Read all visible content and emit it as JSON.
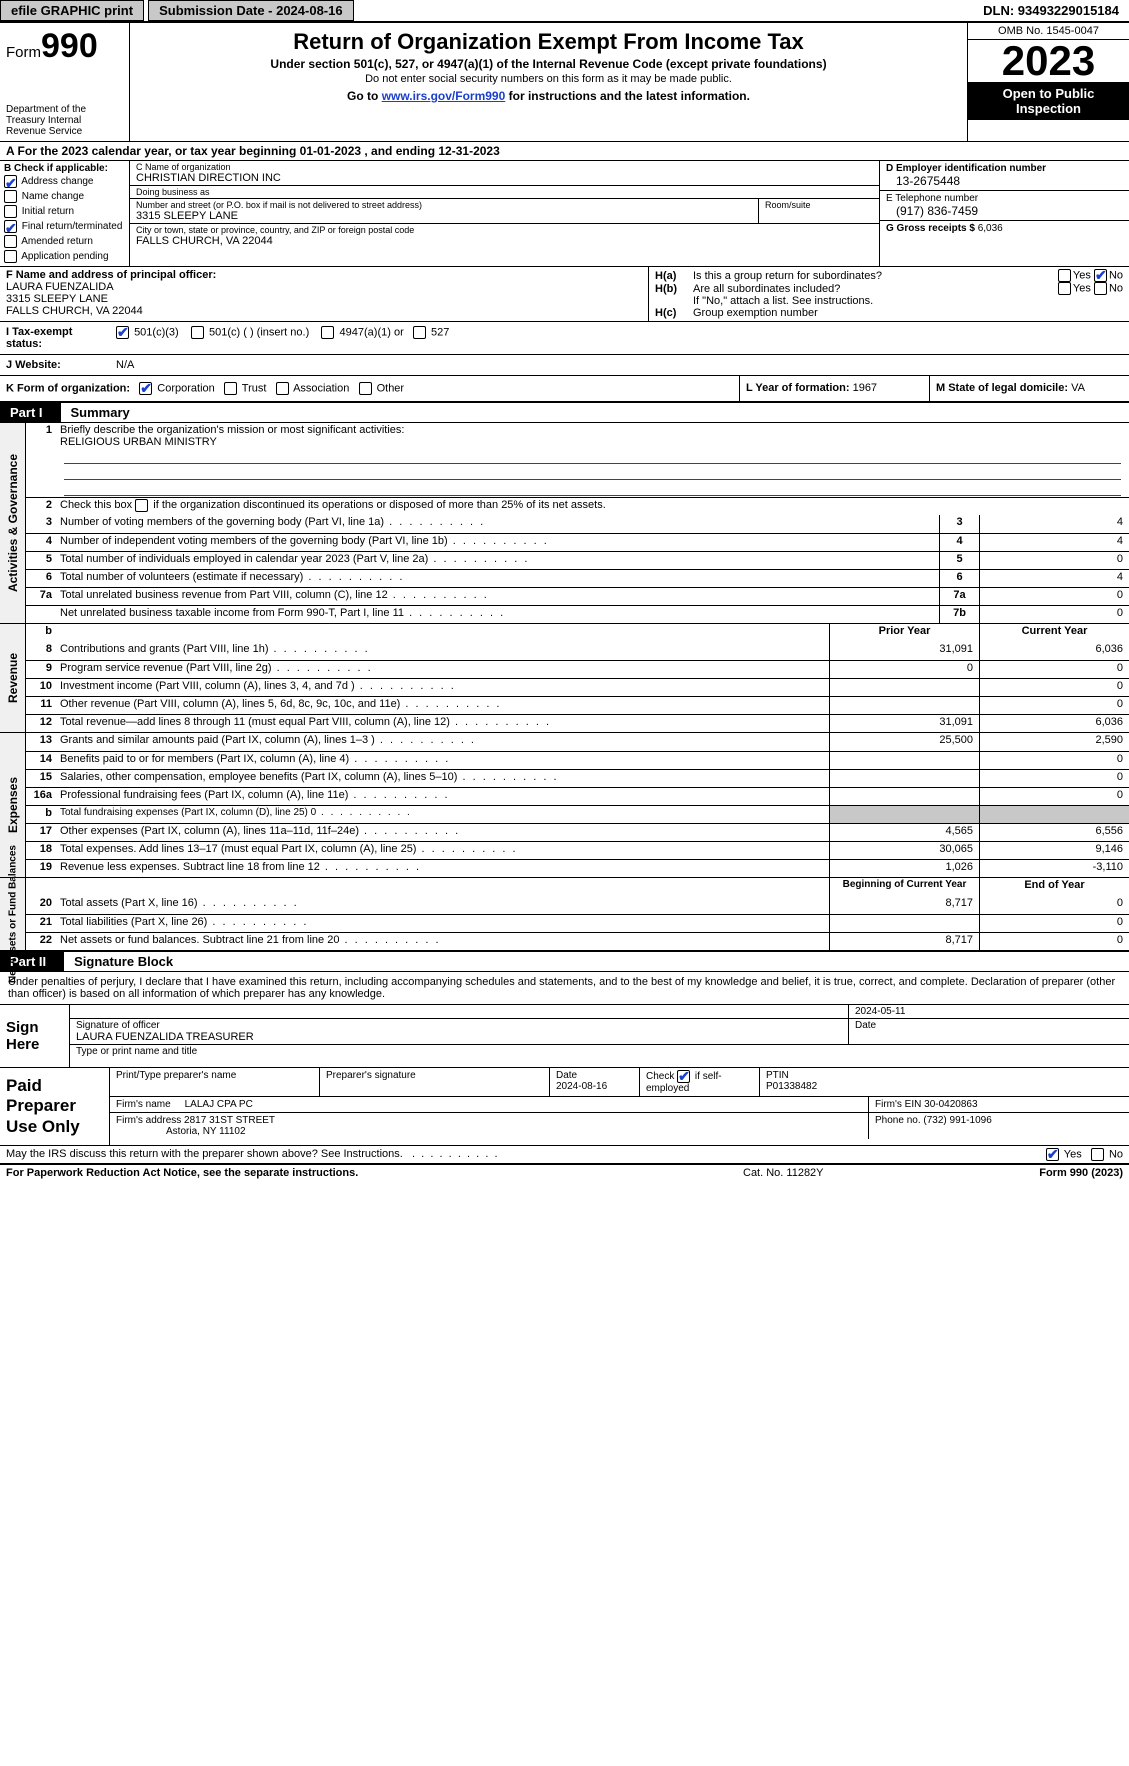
{
  "topbar": {
    "efile": "efile GRAPHIC print",
    "submission": "Submission Date - 2024-08-16",
    "dln": "DLN: 93493229015184"
  },
  "header": {
    "form_word": "Form",
    "form_num": "990",
    "dept": "Department of the Treasury Internal Revenue Service",
    "title": "Return of Organization Exempt From Income Tax",
    "sub1": "Under section 501(c), 527, or 4947(a)(1) of the Internal Revenue Code (except private foundations)",
    "sub2": "Do not enter social security numbers on this form as it may be made public.",
    "sub3_a": "Go to ",
    "sub3_link": "www.irs.gov/Form990",
    "sub3_b": " for instructions and the latest information.",
    "omb": "OMB No. 1545-0047",
    "year": "2023",
    "inspect": "Open to Public Inspection"
  },
  "line_a": "A For the 2023 calendar year, or tax year beginning 01-01-2023    , and ending 12-31-2023",
  "col_b": {
    "hdr": "B Check if applicable:",
    "opts": [
      "Address change",
      "Name change",
      "Initial return",
      "Final return/terminated",
      "Amended return",
      "Application pending"
    ],
    "checked": [
      true,
      false,
      false,
      true,
      false,
      false
    ]
  },
  "col_c": {
    "name_lbl": "C Name of organization",
    "name": "CHRISTIAN DIRECTION INC",
    "dba_lbl": "Doing business as",
    "dba": "",
    "street_lbl": "Number and street (or P.O. box if mail is not delivered to street address)",
    "street": "3315 SLEEPY LANE",
    "room_lbl": "Room/suite",
    "city_lbl": "City or town, state or province, country, and ZIP or foreign postal code",
    "city": "FALLS CHURCH, VA   22044"
  },
  "col_deg": {
    "d_lbl": "D Employer identification number",
    "d_val": "13-2675448",
    "e_lbl": "E Telephone number",
    "e_val": "(917) 836-7459",
    "g_lbl": "G Gross receipts $",
    "g_val": "6,036"
  },
  "row_f": {
    "lbl": "F  Name and address of principal officer:",
    "name": "LAURA FUENZALIDA",
    "addr1": "3315 SLEEPY LANE",
    "addr2": "FALLS CHURCH, VA  22044",
    "ha_lbl": "H(a)",
    "ha_txt": "Is this a group return for subordinates?",
    "hb_lbl": "H(b)",
    "hb_txt": "Are all subordinates included?",
    "hb_note": "If \"No,\" attach a list. See instructions.",
    "hc_lbl": "H(c)",
    "hc_txt": "Group exemption number",
    "yes": "Yes",
    "no": "No"
  },
  "row_i": {
    "lbl": "I  Tax-exempt status:",
    "o1": "501(c)(3)",
    "o2": "501(c) (  ) (insert no.)",
    "o3": "4947(a)(1) or",
    "o4": "527"
  },
  "row_j": {
    "lbl": "J  Website:",
    "val": "N/A"
  },
  "row_k": {
    "lbl": "K Form of organization:",
    "o1": "Corporation",
    "o2": "Trust",
    "o3": "Association",
    "o4": "Other",
    "l_lbl": "L Year of formation:",
    "l_val": "1967",
    "m_lbl": "M State of legal domicile:",
    "m_val": "VA"
  },
  "parts": {
    "p1_tag": "Part I",
    "p1_ttl": "Summary",
    "p2_tag": "Part II",
    "p2_ttl": "Signature Block"
  },
  "gov": {
    "vlabel": "Activities & Governance",
    "l1": "Briefly describe the organization's mission or most significant activities:",
    "l1_val": "RELIGIOUS URBAN MINISTRY",
    "l2": "Check this box        if the organization discontinued its operations or disposed of more than 25% of its net assets.",
    "rows": [
      {
        "n": "3",
        "d": "Number of voting members of the governing body (Part VI, line 1a)",
        "b": "3",
        "v": "4"
      },
      {
        "n": "4",
        "d": "Number of independent voting members of the governing body (Part VI, line 1b)",
        "b": "4",
        "v": "4"
      },
      {
        "n": "5",
        "d": "Total number of individuals employed in calendar year 2023 (Part V, line 2a)",
        "b": "5",
        "v": "0"
      },
      {
        "n": "6",
        "d": "Total number of volunteers (estimate if necessary)",
        "b": "6",
        "v": "4"
      },
      {
        "n": "7a",
        "d": "Total unrelated business revenue from Part VIII, column (C), line 12",
        "b": "7a",
        "v": "0"
      },
      {
        "n": "",
        "d": "Net unrelated business taxable income from Form 990-T, Part I, line 11",
        "b": "7b",
        "v": "0"
      }
    ]
  },
  "rev": {
    "vlabel": "Revenue",
    "hdr_b": "b",
    "hdr_py": "Prior Year",
    "hdr_cy": "Current Year",
    "rows": [
      {
        "n": "8",
        "d": "Contributions and grants (Part VIII, line 1h)",
        "py": "31,091",
        "cy": "6,036"
      },
      {
        "n": "9",
        "d": "Program service revenue (Part VIII, line 2g)",
        "py": "0",
        "cy": "0"
      },
      {
        "n": "10",
        "d": "Investment income (Part VIII, column (A), lines 3, 4, and 7d )",
        "py": "",
        "cy": "0"
      },
      {
        "n": "11",
        "d": "Other revenue (Part VIII, column (A), lines 5, 6d, 8c, 9c, 10c, and 11e)",
        "py": "",
        "cy": "0"
      },
      {
        "n": "12",
        "d": "Total revenue—add lines 8 through 11 (must equal Part VIII, column (A), line 12)",
        "py": "31,091",
        "cy": "6,036"
      }
    ]
  },
  "exp": {
    "vlabel": "Expenses",
    "rows": [
      {
        "n": "13",
        "d": "Grants and similar amounts paid (Part IX, column (A), lines 1–3 )",
        "py": "25,500",
        "cy": "2,590"
      },
      {
        "n": "14",
        "d": "Benefits paid to or for members (Part IX, column (A), line 4)",
        "py": "",
        "cy": "0"
      },
      {
        "n": "15",
        "d": "Salaries, other compensation, employee benefits (Part IX, column (A), lines 5–10)",
        "py": "",
        "cy": "0"
      },
      {
        "n": "16a",
        "d": "Professional fundraising fees (Part IX, column (A), line 11e)",
        "py": "",
        "cy": "0"
      },
      {
        "n": "b",
        "d": "Total fundraising expenses (Part IX, column (D), line 25) 0",
        "py": "__SHADE__",
        "cy": "__SHADE__",
        "small": true
      },
      {
        "n": "17",
        "d": "Other expenses (Part IX, column (A), lines 11a–11d, 11f–24e)",
        "py": "4,565",
        "cy": "6,556"
      },
      {
        "n": "18",
        "d": "Total expenses. Add lines 13–17 (must equal Part IX, column (A), line 25)",
        "py": "30,065",
        "cy": "9,146"
      },
      {
        "n": "19",
        "d": "Revenue less expenses. Subtract line 18 from line 12",
        "py": "1,026",
        "cy": "-3,110"
      }
    ]
  },
  "net": {
    "vlabel": "Net Assets or Fund Balances",
    "hdr_py": "Beginning of Current Year",
    "hdr_cy": "End of Year",
    "rows": [
      {
        "n": "20",
        "d": "Total assets (Part X, line 16)",
        "py": "8,717",
        "cy": "0"
      },
      {
        "n": "21",
        "d": "Total liabilities (Part X, line 26)",
        "py": "",
        "cy": "0"
      },
      {
        "n": "22",
        "d": "Net assets or fund balances. Subtract line 21 from line 20",
        "py": "8,717",
        "cy": "0"
      }
    ]
  },
  "sig_text": "Under penalties of perjury, I declare that I have examined this return, including accompanying schedules and statements, and to the best of my knowledge and belief, it is true, correct, and complete. Declaration of preparer (other than officer) is based on all information of which preparer has any knowledge.",
  "sign": {
    "lbl": "Sign Here",
    "date": "2024-05-11",
    "sig_lbl": "Signature of officer",
    "name": "LAURA FUENZALIDA  TREASURER",
    "type_lbl": "Type or print name and title",
    "date_lbl": "Date"
  },
  "prep": {
    "lbl": "Paid Preparer Use Only",
    "h1": "Print/Type preparer's name",
    "h2": "Preparer's signature",
    "h3_lbl": "Date",
    "h3": "2024-08-16",
    "h4_lbl": "Check",
    "h4_txt": "if self-employed",
    "h5_lbl": "PTIN",
    "h5": "P01338482",
    "firm_name_lbl": "Firm's name",
    "firm_name": "LALAJ CPA PC",
    "firm_ein_lbl": "Firm's EIN",
    "firm_ein": "30-0420863",
    "firm_addr_lbl": "Firm's address",
    "firm_addr1": "2817 31ST STREET",
    "firm_addr2": "Astoria, NY  11102",
    "phone_lbl": "Phone no.",
    "phone": "(732) 991-1096"
  },
  "footer_q": {
    "txt": "May the IRS discuss this return with the preparer shown above? See Instructions.",
    "yes": "Yes",
    "no": "No"
  },
  "footer_bot": {
    "l": "For Paperwork Reduction Act Notice, see the separate instructions.",
    "m": "Cat. No. 11282Y",
    "r": "Form 990 (2023)"
  }
}
